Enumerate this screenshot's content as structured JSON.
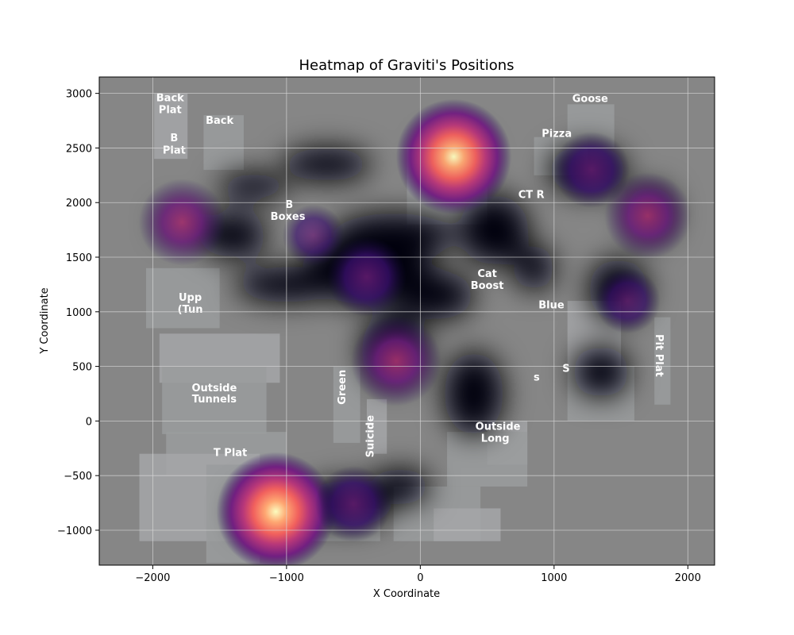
{
  "chart_data": {
    "type": "heatmap",
    "title": "Heatmap of Graviti's Positions",
    "xlabel": "X Coordinate",
    "ylabel": "Y Coordinate",
    "xlim": [
      -2400,
      2200
    ],
    "ylim": [
      -1320,
      3150
    ],
    "xticks": [
      -2000,
      -1000,
      0,
      1000,
      2000
    ],
    "yticks": [
      -1000,
      -500,
      0,
      500,
      1000,
      1500,
      2000,
      2500,
      3000
    ],
    "grid": true,
    "colormap": "magma",
    "background": "map image",
    "hotspots": [
      {
        "x": -1080,
        "y": -830,
        "intensity": 1.0
      },
      {
        "x": 250,
        "y": 2420,
        "intensity": 0.95
      },
      {
        "x": -1780,
        "y": 1820,
        "intensity": 0.55
      },
      {
        "x": 1700,
        "y": 1880,
        "intensity": 0.55
      },
      {
        "x": -180,
        "y": 550,
        "intensity": 0.6
      },
      {
        "x": -400,
        "y": 1320,
        "intensity": 0.45
      },
      {
        "x": 1280,
        "y": 2300,
        "intensity": 0.4
      },
      {
        "x": -500,
        "y": -760,
        "intensity": 0.4
      },
      {
        "x": 1550,
        "y": 1100,
        "intensity": 0.25
      },
      {
        "x": -800,
        "y": 1700,
        "intensity": 0.2
      }
    ],
    "map_labels": [
      {
        "text": "Back",
        "x": -1870,
        "y": 2930
      },
      {
        "text": "Plat",
        "x": -1870,
        "y": 2820
      },
      {
        "text": "Back",
        "x": -1500,
        "y": 2720
      },
      {
        "text": "B",
        "x": -1840,
        "y": 2560
      },
      {
        "text": "Plat",
        "x": -1840,
        "y": 2450
      },
      {
        "text": "Goose",
        "x": 1270,
        "y": 2920
      },
      {
        "text": "Pizza",
        "x": 1020,
        "y": 2600
      },
      {
        "text": "CT R",
        "x": 830,
        "y": 2040
      },
      {
        "text": "B",
        "x": -980,
        "y": 1950
      },
      {
        "text": "Boxes",
        "x": -990,
        "y": 1840
      },
      {
        "text": "Cat",
        "x": 500,
        "y": 1320
      },
      {
        "text": "Boost",
        "x": 500,
        "y": 1210
      },
      {
        "text": "Upp",
        "x": -1720,
        "y": 1100
      },
      {
        "text": "(Tun",
        "x": -1720,
        "y": 990
      },
      {
        "text": "Blue",
        "x": 980,
        "y": 1030
      },
      {
        "text": "Pit Plat",
        "x": 1760,
        "y": 600
      },
      {
        "text": "Outside",
        "x": -1540,
        "y": 270
      },
      {
        "text": "Tunnels",
        "x": -1540,
        "y": 170
      },
      {
        "text": "Green",
        "x": -560,
        "y": 310
      },
      {
        "text": "Suicide",
        "x": -350,
        "y": -140
      },
      {
        "text": "Outside",
        "x": 580,
        "y": -80
      },
      {
        "text": "Long",
        "x": 560,
        "y": -190
      },
      {
        "text": "T Plat",
        "x": -1420,
        "y": -320
      },
      {
        "text": "s",
        "x": 870,
        "y": 370
      },
      {
        "text": "S",
        "x": 1090,
        "y": 450
      }
    ]
  }
}
